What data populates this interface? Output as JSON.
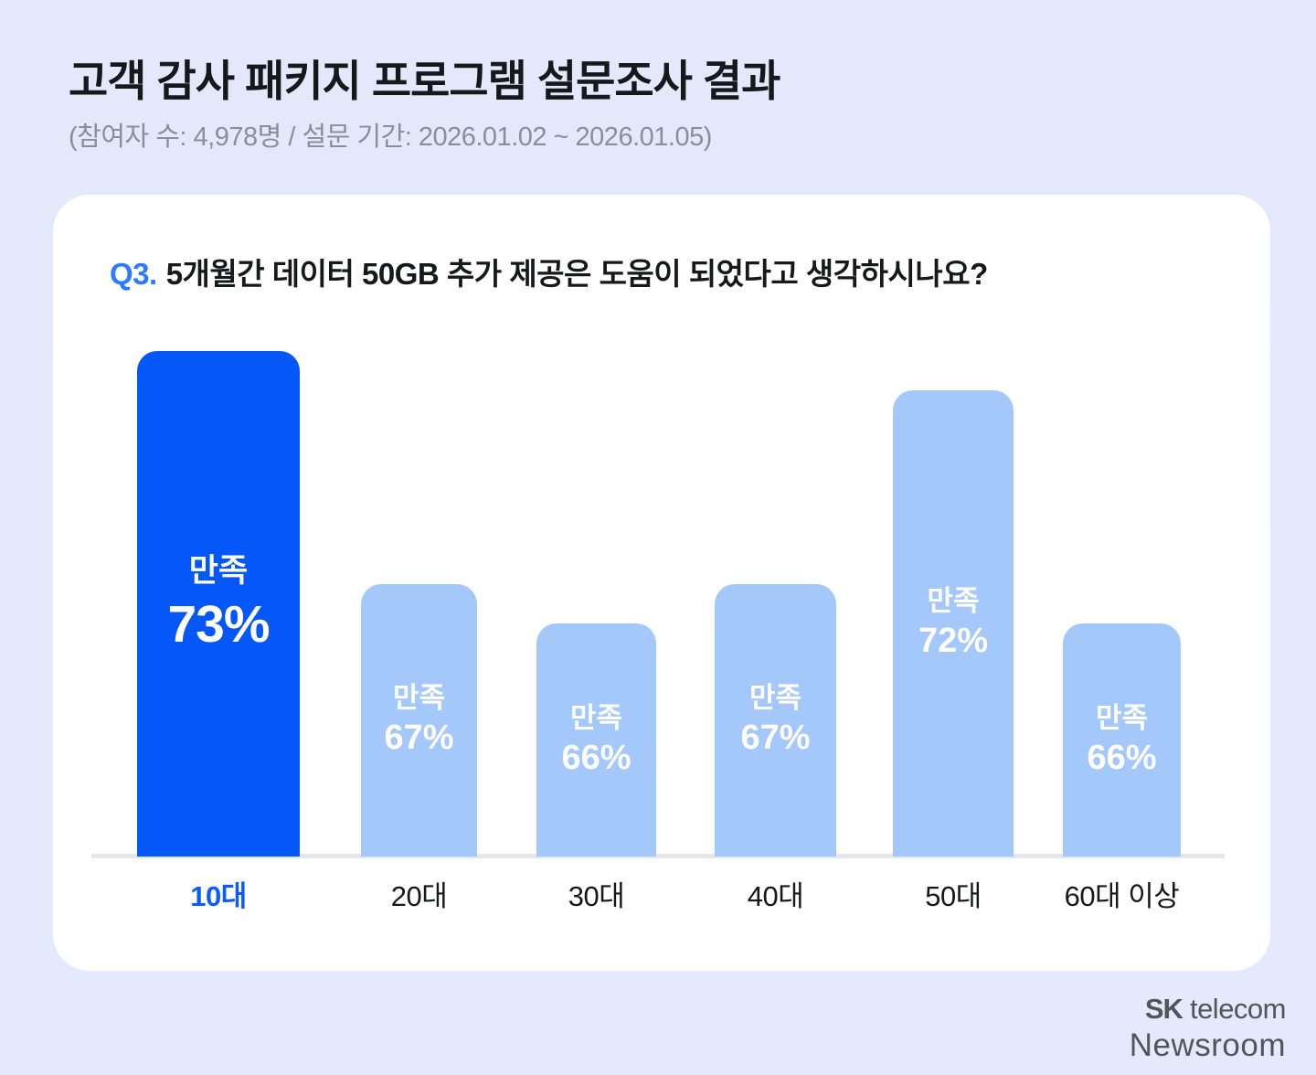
{
  "page": {
    "title": "고객 감사 패키지 프로그램 설문조사 결과",
    "subtitle": "(참여자 수: 4,978명 / 설문 기간: 2026.01.02 ~ 2026.01.05)"
  },
  "question": {
    "prefix": "Q3.",
    "text": "5개월간 데이터 50GB 추가 제공은 도움이 되었다고 생각하시나요?"
  },
  "chart_data": {
    "type": "bar",
    "title": "Q3. 5개월간 데이터 50GB 추가 제공은 도움이 되었다고 생각하시나요?",
    "categories": [
      "10대",
      "20대",
      "30대",
      "40대",
      "50대",
      "60대 이상"
    ],
    "values": [
      73,
      67,
      66,
      67,
      72,
      66
    ],
    "value_prefix_label": "만족",
    "unit": "%",
    "highlight_index": 0,
    "ylim": [
      60,
      75
    ],
    "grid": false,
    "legend": "none",
    "colors": {
      "bar_highlight": "#0558F7",
      "bar_default": "#A4C8FA",
      "bar_text": "#FFFFFF",
      "category_highlight": "#0B5CF8",
      "category_default": "#17181C",
      "question_accent": "#2B7BFF",
      "axis_line": "#E6E7E9"
    }
  },
  "footer": {
    "brand_bold": "SK",
    "brand_rest": "telecom",
    "brand_line2": "Newsroom"
  }
}
